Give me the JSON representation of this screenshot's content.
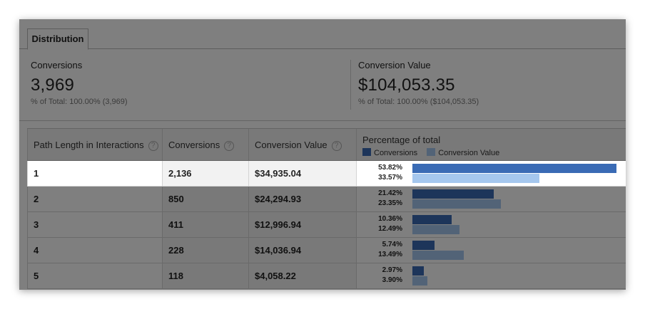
{
  "tab": {
    "label": "Distribution"
  },
  "metrics": [
    {
      "label": "Conversions",
      "value": "3,969",
      "sub": "% of Total: 100.00% (3,969)"
    },
    {
      "label": "Conversion Value",
      "value": "$104,053.35",
      "sub": "% of Total: 100.00% ($104,053.35)"
    }
  ],
  "table": {
    "headers": [
      "Path Length in Interactions",
      "Conversions",
      "Conversion Value",
      "Percentage of total"
    ],
    "help_glyph": "?",
    "legend": [
      {
        "label": "Conversions",
        "color": "#3a6bb5"
      },
      {
        "label": "Conversion Value",
        "color": "#a5c7ee"
      }
    ],
    "rows": [
      {
        "path": "1",
        "conversions": "2,136",
        "value": "$34,935.04",
        "pct_conv": "53.82%",
        "pct_value": "33.57%",
        "frac_conv": 0.5382,
        "frac_value": 0.3357
      },
      {
        "path": "2",
        "conversions": "850",
        "value": "$24,294.93",
        "pct_conv": "21.42%",
        "pct_value": "23.35%",
        "frac_conv": 0.2142,
        "frac_value": 0.2335
      },
      {
        "path": "3",
        "conversions": "411",
        "value": "$12,996.94",
        "pct_conv": "10.36%",
        "pct_value": "12.49%",
        "frac_conv": 0.1036,
        "frac_value": 0.1249
      },
      {
        "path": "4",
        "conversions": "228",
        "value": "$14,036.94",
        "pct_conv": "5.74%",
        "pct_value": "13.49%",
        "frac_conv": 0.0574,
        "frac_value": 0.1349
      },
      {
        "path": "5",
        "conversions": "118",
        "value": "$4,058.22",
        "pct_conv": "2.97%",
        "pct_value": "3.90%",
        "frac_conv": 0.0297,
        "frac_value": 0.039
      }
    ]
  }
}
